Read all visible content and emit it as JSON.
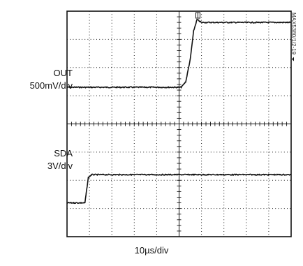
{
  "chart_data": {
    "type": "line",
    "title": "",
    "xlabel": "10µs/div",
    "grid": true,
    "figure_id": "MAX5380/1/2-19",
    "x_divisions": 10,
    "y_divisions": 8,
    "x_unit": "µs",
    "series": [
      {
        "name": "OUT",
        "scale_label": "500mV/div",
        "points_div": [
          [
            0,
            5.3
          ],
          [
            5.1,
            5.3
          ],
          [
            5.3,
            5.5
          ],
          [
            5.5,
            6.3
          ],
          [
            5.65,
            7.3
          ],
          [
            5.8,
            7.7
          ],
          [
            6.0,
            7.6
          ],
          [
            10,
            7.6
          ]
        ]
      },
      {
        "name": "SDA",
        "scale_label": "3V/div",
        "points_div": [
          [
            0,
            1.2
          ],
          [
            0.8,
            1.2
          ],
          [
            0.85,
            1.5
          ],
          [
            0.95,
            2.1
          ],
          [
            1.1,
            2.2
          ],
          [
            10,
            2.2
          ]
        ]
      }
    ]
  }
}
